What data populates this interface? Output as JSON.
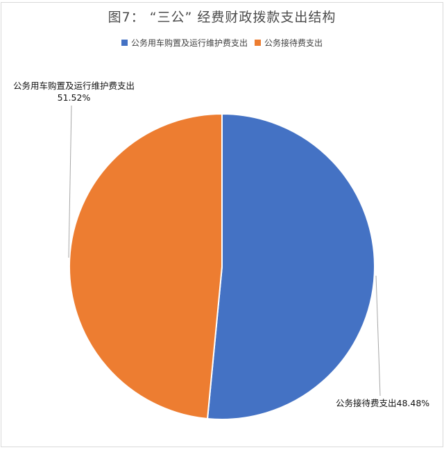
{
  "page": {
    "background": "#FFFFFF",
    "border_color": "#D9D9D9"
  },
  "chart_data": {
    "type": "pie",
    "title": "图7： “三公” 经费财政拨款支出结构",
    "slices": [
      {
        "label": "公务用车购置及运行维护费支出",
        "value_pct": 51.52,
        "color": "#4472C4"
      },
      {
        "label": "公务接待费支出",
        "value_pct": 48.48,
        "color": "#ED7D31"
      }
    ],
    "start_angle": "12-oclock",
    "direction": "clockwise",
    "legend_position": "top",
    "slice_border_color": "#FFFFFF",
    "leader_line_color": "#A6A6A6",
    "callouts": [
      {
        "line1": "公务用车购置及运行维护费支出",
        "line2": "51.52%",
        "anchor": "left-edge-of-pie"
      },
      {
        "line1": "公务接待费支出48.48%",
        "anchor": "right-edge-of-pie"
      }
    ]
  },
  "legend": {
    "items": [
      {
        "label": "公务用车购置及运行维护费支出",
        "color": "#4472C4"
      },
      {
        "label": "公务接待费支出",
        "color": "#ED7D31"
      }
    ]
  }
}
